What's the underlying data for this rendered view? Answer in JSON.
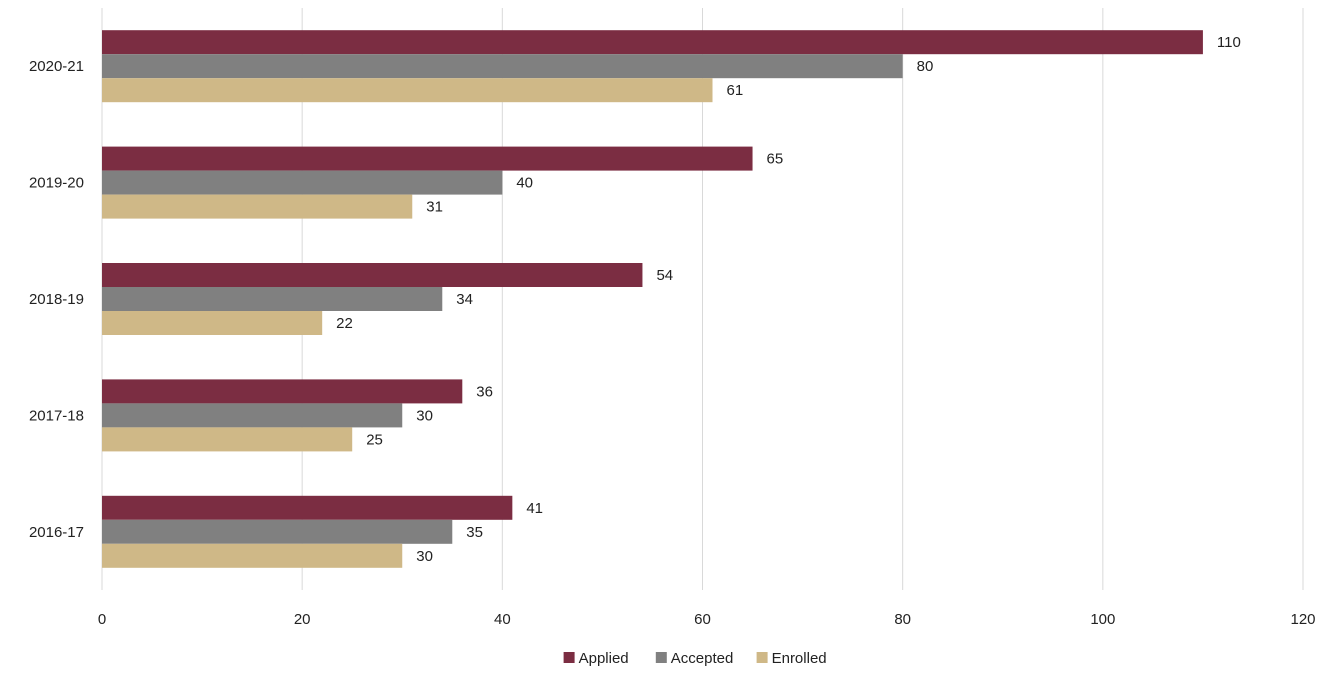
{
  "chart_data": {
    "type": "bar",
    "orientation": "horizontal",
    "categories": [
      "2020-21",
      "2019-20",
      "2018-19",
      "2017-18",
      "2016-17"
    ],
    "series": [
      {
        "name": "Applied",
        "color": "#7b2d42",
        "values": [
          110,
          65,
          54,
          36,
          41
        ]
      },
      {
        "name": "Accepted",
        "color": "#808080",
        "values": [
          80,
          40,
          34,
          30,
          35
        ]
      },
      {
        "name": "Enrolled",
        "color": "#cfb887",
        "values": [
          61,
          31,
          22,
          25,
          30
        ]
      }
    ],
    "x_ticks": [
      "0",
      "20",
      "40",
      "60",
      "80",
      "100",
      "120"
    ],
    "xlim": [
      0,
      120
    ],
    "title": "",
    "xlabel": "",
    "ylabel": "",
    "grid": true,
    "legend_position": "bottom"
  }
}
